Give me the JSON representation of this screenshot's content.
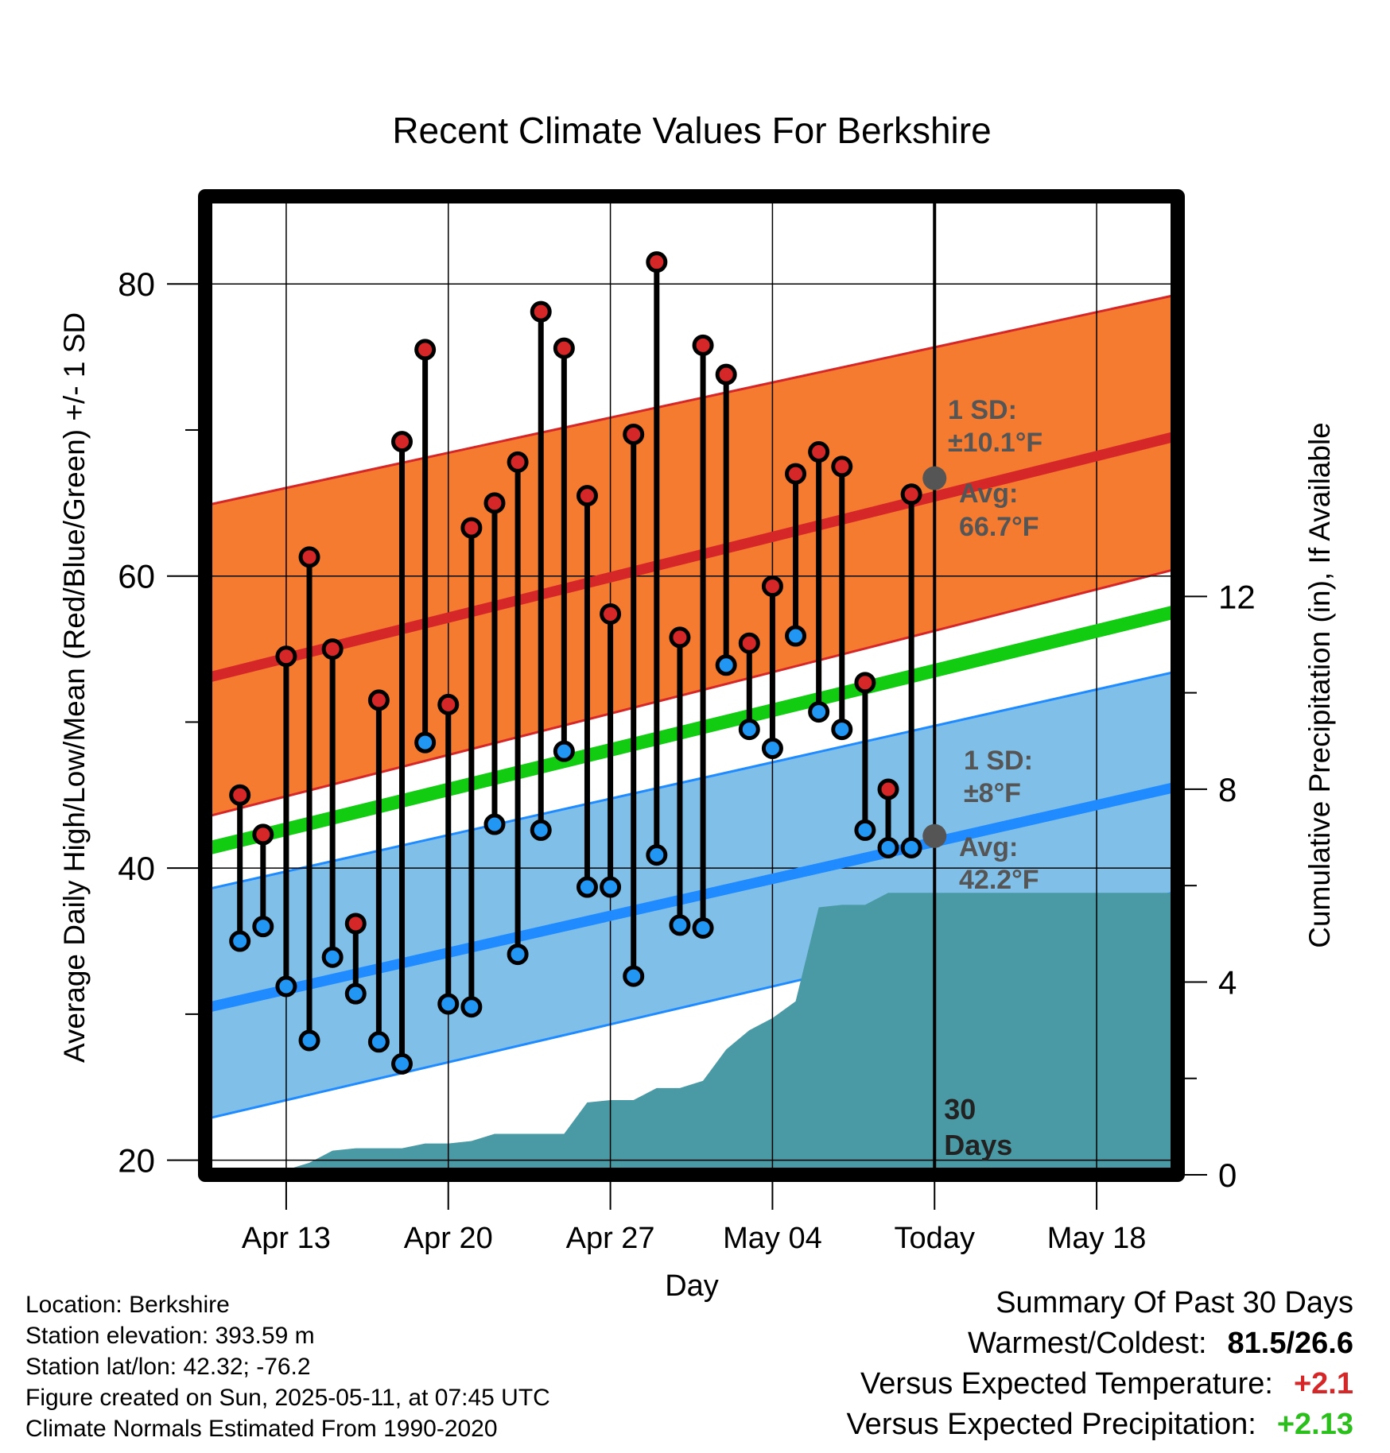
{
  "chart_data": {
    "type": "line",
    "title": "Recent Climate Values For Berkshire",
    "xlabel": "Day",
    "ylabel": "Average Daily High/Low/Mean (Red/Blue/Green) +/- 1 SD",
    "y2label": "Cumulative Precipitation (in), If Available",
    "ylim": [
      19,
      86
    ],
    "y2lim": [
      0,
      20.3
    ],
    "xlim": [
      -0.5,
      41.5
    ],
    "yticks": [
      20,
      40,
      60,
      80
    ],
    "y2ticks": [
      0,
      4,
      8,
      12
    ],
    "x_ticks": [
      {
        "day": 3,
        "label": "Apr 13"
      },
      {
        "day": 10,
        "label": "Apr 20"
      },
      {
        "day": 17,
        "label": "Apr 27"
      },
      {
        "day": 24,
        "label": "May 04"
      },
      {
        "day": 31,
        "label": "Today"
      },
      {
        "day": 38,
        "label": "May 18"
      }
    ],
    "x_origin_note": "day 0 = Apr 10, 2025",
    "today_day": 31,
    "window_label": "30 Days",
    "normals": {
      "x": [
        0,
        41
      ],
      "mean_high": [
        53.2,
        69.4
      ],
      "mean_high_sd_upper": [
        65.0,
        79.1
      ],
      "mean_high_sd_lower": [
        43.7,
        60.3
      ],
      "mean_low": [
        30.6,
        45.4
      ],
      "mean_low_sd_upper": [
        38.7,
        53.3
      ],
      "mean_low_sd_lower": [
        23.0,
        38.2
      ],
      "mean": [
        41.5,
        57.4
      ]
    },
    "high_annotation": {
      "sd_label": "1 SD:",
      "sd_value": "±10.1°F",
      "avg_label": "Avg:",
      "avg_value": "66.7°F",
      "avg": 66.7
    },
    "low_annotation": {
      "sd_label": "1 SD:",
      "sd_value": "±8°F",
      "avg_label": "Avg:",
      "avg_value": "42.2°F",
      "avg": 42.2
    },
    "series": [
      {
        "name": "High",
        "x": [
          1,
          2,
          3,
          4,
          5,
          6,
          7,
          8,
          9,
          10,
          11,
          12,
          13,
          14,
          15,
          16,
          17,
          18,
          19,
          20,
          21,
          22,
          23,
          24,
          25,
          26,
          27,
          28,
          29,
          30
        ],
        "values": [
          45.0,
          42.3,
          54.5,
          61.3,
          55.0,
          36.2,
          51.5,
          69.2,
          75.5,
          51.2,
          63.3,
          65.0,
          67.8,
          78.1,
          75.6,
          65.5,
          57.4,
          69.7,
          81.5,
          55.8,
          75.8,
          73.8,
          55.4,
          59.3,
          67.0,
          68.5,
          67.5,
          52.7,
          45.4,
          65.6
        ]
      },
      {
        "name": "Low",
        "x": [
          1,
          2,
          3,
          4,
          5,
          6,
          7,
          8,
          9,
          10,
          11,
          12,
          13,
          14,
          15,
          16,
          17,
          18,
          19,
          20,
          21,
          22,
          23,
          24,
          25,
          26,
          27,
          28,
          29,
          30
        ],
        "values": [
          35.0,
          36.0,
          31.9,
          28.2,
          33.9,
          31.4,
          28.1,
          26.6,
          48.6,
          30.7,
          30.5,
          43.0,
          34.1,
          42.6,
          48.0,
          38.7,
          38.7,
          32.6,
          40.9,
          36.1,
          35.9,
          53.9,
          49.5,
          48.2,
          55.9,
          50.7,
          49.5,
          42.6,
          41.4,
          41.4
        ]
      },
      {
        "name": "Cumulative Precipitation",
        "x": [
          1,
          2,
          3,
          4,
          5,
          6,
          7,
          8,
          9,
          10,
          11,
          12,
          13,
          14,
          15,
          16,
          17,
          18,
          19,
          20,
          21,
          22,
          23,
          24,
          25,
          26,
          27,
          28,
          29,
          30,
          31,
          41
        ],
        "values": [
          0.0,
          0.1,
          0.1,
          0.25,
          0.5,
          0.55,
          0.55,
          0.55,
          0.65,
          0.65,
          0.7,
          0.85,
          0.85,
          0.85,
          0.85,
          1.5,
          1.55,
          1.55,
          1.8,
          1.8,
          1.95,
          2.6,
          3.0,
          3.25,
          3.6,
          5.55,
          5.6,
          5.6,
          5.85,
          5.85,
          5.85,
          5.85
        ]
      }
    ],
    "colors": {
      "high_band": "#f47b30",
      "high_line": "#d62728",
      "low_band": "#80c0e8",
      "low_line": "#1f8bff",
      "mean_line": "#11cc11",
      "precip": "#4a9aa5",
      "high_marker": "#d62728",
      "low_marker": "#2196f3",
      "annotation": "#555555"
    },
    "grid": true
  },
  "info": {
    "location": "Location: Berkshire",
    "elevation": "Station elevation: 393.59 m",
    "latlon": "Station lat/lon: 42.32; -76.2",
    "created": "Figure created on Sun, 2025-05-11, at 07:45 UTC",
    "normals": "Climate Normals Estimated From 1990-2020"
  },
  "summary": {
    "heading": "Summary Of Past 30 Days",
    "warm_label": "Warmest/Coldest:",
    "warm_value": "81.5/26.6",
    "temp_label": "Versus Expected Temperature:",
    "temp_value": "+2.1",
    "precip_label": "Versus Expected Precipitation:",
    "precip_value": "+2.13"
  }
}
